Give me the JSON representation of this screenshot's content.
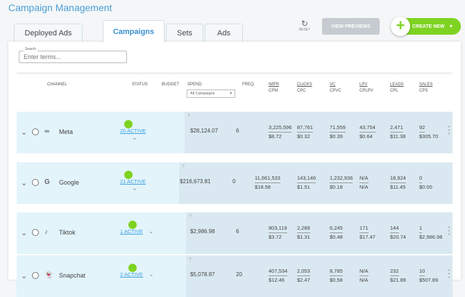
{
  "header": {
    "title": "Campaign Management",
    "reset_label": "RESET",
    "view_previews": "VIEW PREVIEWS",
    "create_new": "CREATE NEW"
  },
  "tabs": [
    {
      "label": "Deployed Ads"
    },
    {
      "label": "Campaigns"
    },
    {
      "label": "Sets"
    },
    {
      "label": "Ads"
    }
  ],
  "search": {
    "label": "Search",
    "placeholder": "Enter terms..."
  },
  "columns": {
    "channel": "CHANNEL",
    "status": "STATUS",
    "budget": "BUDGET",
    "spend": "SPEND",
    "spend_filter": "All Campaigns",
    "freq": "FREQ.",
    "metrics": [
      [
        "IMPR",
        "CPM"
      ],
      [
        "CLICKS",
        "CPC"
      ],
      [
        "VC",
        "CPVC"
      ],
      [
        "LPV",
        "CPLPV"
      ],
      [
        "LEADS",
        "CPL"
      ],
      [
        "SALES",
        "CPS"
      ]
    ]
  },
  "rows": [
    {
      "channel": "Meta",
      "icon": "∞",
      "status": "20 ACTIVE",
      "spend": "$28,124.07",
      "freq": "6",
      "metrics": [
        [
          "3,225,596",
          "$8.72"
        ],
        [
          "87,761",
          "$0.32"
        ],
        [
          "71,559",
          "$0.39"
        ],
        [
          "43,754",
          "$0.64"
        ],
        [
          "2,471",
          "$11.38"
        ],
        [
          "92",
          "$305.70"
        ]
      ]
    },
    {
      "channel": "Google",
      "icon": "G",
      "status": "21 ACTIVE",
      "spend": "$216,673.81",
      "freq": "0",
      "metrics": [
        [
          "11,661,533",
          "$18.58"
        ],
        [
          "143,146",
          "$1.51"
        ],
        [
          "1,232,936",
          "$0.18"
        ],
        [
          "N/A",
          "N/A"
        ],
        [
          "18,924",
          "$11.45"
        ],
        [
          "0",
          "$0.00"
        ]
      ]
    },
    {
      "channel": "Tiktok",
      "icon": "♪",
      "status": "1 ACTIVE",
      "spend": "$2,986.98",
      "freq": "6",
      "metrics": [
        [
          "803,119",
          "$3.72"
        ],
        [
          "2,288",
          "$1.31"
        ],
        [
          "6,245",
          "$0.48"
        ],
        [
          "171",
          "$17.47"
        ],
        [
          "144",
          "$20.74"
        ],
        [
          "1",
          "$2,986.98"
        ]
      ]
    },
    {
      "channel": "Snapchat",
      "icon": "👻",
      "status": "2 ACTIVE",
      "spend": "$5,078.87",
      "freq": "20",
      "metrics": [
        [
          "407,534",
          "$12.46"
        ],
        [
          "2,053",
          "$2.47"
        ],
        [
          "8,785",
          "$0.58"
        ],
        [
          "N/A",
          "N/A"
        ],
        [
          "232",
          "$21.89"
        ],
        [
          "10",
          "$507.89"
        ]
      ]
    }
  ]
}
